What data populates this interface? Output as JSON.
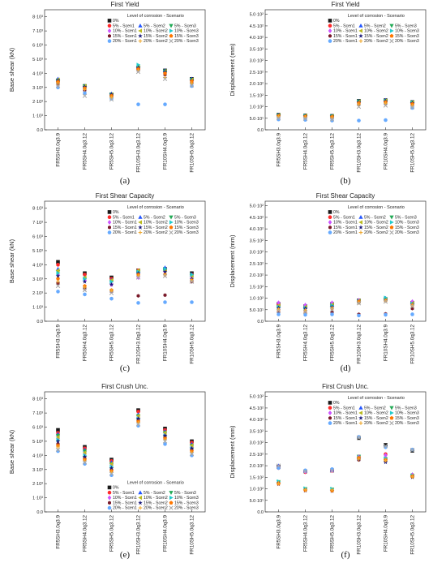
{
  "figure": {
    "legend_title": "Level of corrosion - Scenario",
    "legend_entries": [
      "0%",
      "5% - Scen1",
      "5% - Scen2",
      "5% - Scen3",
      "10% - Scen1",
      "10% - Scen2",
      "10% - Scen3",
      "15% - Scen1",
      "15% - Scen2",
      "15% - Scen3",
      "20% - Scen1",
      "20% - Scen2",
      "20% - Scen3"
    ],
    "series_colors": [
      "#1a1a1a",
      "#ff2a2a",
      "#2255ff",
      "#22aa55",
      "#cc55ff",
      "#bbbb22",
      "#22cccc",
      "#7a1a2a",
      "#1a1a7a",
      "#ff7700",
      "#66aaff",
      "#eeaa33",
      "#aaaaaa"
    ],
    "series_markers": [
      "square",
      "circle",
      "triangle",
      "triangle-down",
      "diamond",
      "triangle-left",
      "triangle-right",
      "hexagon",
      "star",
      "pentagon",
      "circle",
      "plus",
      "x"
    ],
    "categories": [
      "FR5SH3.0q3.9",
      "FR5SH4.0q3.12",
      "FR5SH5.0q3.12",
      "FR10SH3.0q3.12",
      "FR10SH4.0q3.9",
      "FR10SH5.0q3.12"
    ]
  },
  "chart_data": [
    {
      "panel": "(a)",
      "type": "scatter",
      "title": "First Yield",
      "xlabel": "",
      "ylabel": "Base shear (kN)",
      "ylim": [
        0,
        8500
      ],
      "yticks": [
        0,
        1000,
        2000,
        3000,
        4000,
        5000,
        6000,
        7000,
        8000
      ],
      "ytick_labels": [
        "0.0",
        "1·10³",
        "2·10³",
        "3·10³",
        "4·10³",
        "5·10³",
        "6·10³",
        "7·10³",
        "8·10³"
      ],
      "legend_position": "top-right",
      "series": [
        {
          "name": "0%",
          "values": [
            3500,
            3100,
            2500,
            4400,
            4200,
            3600
          ]
        },
        {
          "name": "5% - Scen1",
          "values": [
            3400,
            3000,
            2500,
            4300,
            4100,
            3500
          ]
        },
        {
          "name": "5% - Scen2",
          "values": [
            3600,
            3100,
            2550,
            4500,
            4200,
            3600
          ]
        },
        {
          "name": "5% - Scen3",
          "values": [
            3500,
            3100,
            2500,
            4400,
            4150,
            3550
          ]
        },
        {
          "name": "10% - Scen1",
          "values": [
            3300,
            2900,
            2400,
            4300,
            4000,
            3400
          ]
        },
        {
          "name": "10% - Scen2",
          "values": [
            3550,
            3100,
            2500,
            4450,
            4150,
            3550
          ]
        },
        {
          "name": "10% - Scen3",
          "values": [
            3450,
            3000,
            2450,
            4600,
            4100,
            3500
          ]
        },
        {
          "name": "15% - Scen1",
          "values": [
            3200,
            2800,
            2300,
            4200,
            3900,
            3300
          ]
        },
        {
          "name": "15% - Scen2",
          "values": [
            3500,
            3050,
            2500,
            4400,
            4100,
            3500
          ]
        },
        {
          "name": "15% - Scen3",
          "values": [
            3400,
            2950,
            2400,
            4300,
            4000,
            3450
          ]
        },
        {
          "name": "20% - Scen1",
          "values": [
            3000,
            2600,
            2200,
            1800,
            1800,
            3100
          ]
        },
        {
          "name": "20% - Scen2",
          "values": [
            3300,
            2850,
            2300,
            4200,
            3700,
            3300
          ]
        },
        {
          "name": "20% - Scen3",
          "values": [
            3100,
            2400,
            2150,
            4100,
            3600,
            3150
          ]
        }
      ]
    },
    {
      "panel": "(b)",
      "type": "scatter",
      "title": "First Yield",
      "xlabel": "",
      "ylabel": "Displacement (mm)",
      "ylim": [
        0,
        520
      ],
      "yticks": [
        0,
        50,
        100,
        150,
        200,
        250,
        300,
        350,
        400,
        450,
        500
      ],
      "ytick_labels": [
        "0.0",
        "5.0·10¹",
        "1.0·10²",
        "1.5·10²",
        "2.0·10²",
        "2.5·10²",
        "3.0·10²",
        "3.5·10²",
        "4.0·10²",
        "4.5·10²",
        "5.0·10²"
      ],
      "legend_position": "top-right",
      "series": [
        {
          "name": "0%",
          "values": [
            65,
            62,
            60,
            125,
            128,
            120
          ]
        },
        {
          "name": "5% - Scen1",
          "values": [
            62,
            60,
            58,
            122,
            125,
            118
          ]
        },
        {
          "name": "5% - Scen2",
          "values": [
            64,
            62,
            60,
            124,
            128,
            120
          ]
        },
        {
          "name": "5% - Scen3",
          "values": [
            63,
            61,
            59,
            123,
            126,
            119
          ]
        },
        {
          "name": "10% - Scen1",
          "values": [
            58,
            56,
            54,
            115,
            118,
            110
          ]
        },
        {
          "name": "10% - Scen2",
          "values": [
            63,
            61,
            59,
            122,
            126,
            118
          ]
        },
        {
          "name": "10% - Scen3",
          "values": [
            61,
            60,
            57,
            120,
            124,
            116
          ]
        },
        {
          "name": "15% - Scen1",
          "values": [
            55,
            52,
            50,
            108,
            112,
            104
          ]
        },
        {
          "name": "15% - Scen2",
          "values": [
            62,
            60,
            58,
            120,
            124,
            116
          ]
        },
        {
          "name": "15% - Scen3",
          "values": [
            60,
            58,
            56,
            116,
            120,
            112
          ]
        },
        {
          "name": "20% - Scen1",
          "values": [
            45,
            43,
            40,
            40,
            42,
            95
          ]
        },
        {
          "name": "20% - Scen2",
          "values": [
            58,
            55,
            52,
            110,
            115,
            105
          ]
        },
        {
          "name": "20% - Scen3",
          "values": [
            50,
            48,
            45,
            100,
            105,
            98
          ]
        }
      ]
    },
    {
      "panel": "(c)",
      "type": "scatter",
      "title": "First Shear Capacity",
      "xlabel": "",
      "ylabel": "Base shear (kN)",
      "ylim": [
        0,
        8500
      ],
      "yticks": [
        0,
        1000,
        2000,
        3000,
        4000,
        5000,
        6000,
        7000,
        8000
      ],
      "ytick_labels": [
        "0.0",
        "1·10³",
        "2·10³",
        "3·10³",
        "4·10³",
        "5·10³",
        "6·10³",
        "7·10³",
        "8·10³"
      ],
      "legend_position": "top-right",
      "series": [
        {
          "name": "0%",
          "values": [
            4200,
            3400,
            3100,
            3600,
            3700,
            3400
          ]
        },
        {
          "name": "5% - Scen1",
          "values": [
            4000,
            3300,
            3000,
            3600,
            3600,
            3300
          ]
        },
        {
          "name": "5% - Scen2",
          "values": [
            3700,
            3100,
            2900,
            3500,
            3800,
            3300
          ]
        },
        {
          "name": "5% - Scen3",
          "values": [
            3500,
            3000,
            2800,
            3500,
            3600,
            3200
          ]
        },
        {
          "name": "10% - Scen1",
          "values": [
            3300,
            2900,
            2600,
            3100,
            3500,
            3100
          ]
        },
        {
          "name": "10% - Scen2",
          "values": [
            3600,
            3100,
            2900,
            3600,
            3600,
            3200
          ]
        },
        {
          "name": "10% - Scen3",
          "values": [
            3400,
            3000,
            2800,
            3500,
            3700,
            3300
          ]
        },
        {
          "name": "15% - Scen1",
          "values": [
            2700,
            2300,
            2100,
            1800,
            1850,
            2800
          ]
        },
        {
          "name": "15% - Scen2",
          "values": [
            3200,
            2800,
            2600,
            3400,
            3500,
            3000
          ]
        },
        {
          "name": "15% - Scen3",
          "values": [
            3000,
            2500,
            2200,
            3300,
            3300,
            2900
          ]
        },
        {
          "name": "20% - Scen1",
          "values": [
            2100,
            1900,
            1600,
            1300,
            1350,
            1350
          ]
        },
        {
          "name": "20% - Scen2",
          "values": [
            2800,
            2400,
            2200,
            3200,
            3300,
            2900
          ]
        },
        {
          "name": "20% - Scen3",
          "values": [
            2500,
            2200,
            2000,
            3100,
            3200,
            2800
          ]
        }
      ]
    },
    {
      "panel": "(d)",
      "type": "scatter",
      "title": "First Shear Capacity",
      "xlabel": "",
      "ylabel": "Displacement (mm)",
      "ylim": [
        0,
        520
      ],
      "yticks": [
        0,
        50,
        100,
        150,
        200,
        250,
        300,
        350,
        400,
        450,
        500
      ],
      "ytick_labels": [
        "0.0",
        "5.0·10¹",
        "1.0·10²",
        "1.5·10²",
        "2.0·10²",
        "2.5·10²",
        "3.0·10²",
        "3.5·10²",
        "4.0·10²",
        "4.5·10²",
        "5.0·10²"
      ],
      "legend_position": "top-right",
      "series": [
        {
          "name": "0%",
          "values": [
            75,
            65,
            75,
            90,
            95,
            80
          ]
        },
        {
          "name": "5% - Scen1",
          "values": [
            72,
            63,
            73,
            88,
            98,
            78
          ]
        },
        {
          "name": "5% - Scen2",
          "values": [
            65,
            60,
            70,
            85,
            100,
            80
          ]
        },
        {
          "name": "5% - Scen3",
          "values": [
            60,
            58,
            68,
            85,
            95,
            75
          ]
        },
        {
          "name": "10% - Scen1",
          "values": [
            80,
            70,
            80,
            90,
            95,
            85
          ]
        },
        {
          "name": "10% - Scen2",
          "values": [
            68,
            62,
            72,
            88,
            97,
            78
          ]
        },
        {
          "name": "10% - Scen3",
          "values": [
            62,
            58,
            68,
            86,
            102,
            76
          ]
        },
        {
          "name": "15% - Scen1",
          "values": [
            40,
            35,
            38,
            30,
            32,
            55
          ]
        },
        {
          "name": "15% - Scen2",
          "values": [
            58,
            55,
            62,
            82,
            92,
            72
          ]
        },
        {
          "name": "15% - Scen3",
          "values": [
            50,
            45,
            55,
            85,
            90,
            70
          ]
        },
        {
          "name": "20% - Scen1",
          "values": [
            30,
            28,
            30,
            25,
            28,
            30
          ]
        },
        {
          "name": "20% - Scen2",
          "values": [
            52,
            48,
            58,
            80,
            88,
            68
          ]
        },
        {
          "name": "20% - Scen3",
          "values": [
            45,
            40,
            50,
            78,
            85,
            65
          ]
        }
      ]
    },
    {
      "panel": "(e)",
      "type": "scatter",
      "title": "First Crush Unc.",
      "xlabel": "",
      "ylabel": "Base shear (kN)",
      "ylim": [
        0,
        8500
      ],
      "yticks": [
        0,
        1000,
        2000,
        3000,
        4000,
        5000,
        6000,
        7000,
        8000
      ],
      "ytick_labels": [
        "0.0",
        "1·10³",
        "2·10³",
        "3·10³",
        "4·10³",
        "5·10³",
        "6·10³",
        "7·10³",
        "8·10³"
      ],
      "legend_position": "bottom-right",
      "series": [
        {
          "name": "0%",
          "values": [
            5800,
            4600,
            3700,
            7200,
            5900,
            5000
          ]
        },
        {
          "name": "5% - Scen1",
          "values": [
            5600,
            4500,
            3600,
            7100,
            5800,
            4900
          ]
        },
        {
          "name": "5% - Scen2",
          "values": [
            5500,
            4400,
            3500,
            6900,
            5700,
            4800
          ]
        },
        {
          "name": "5% - Scen3",
          "values": [
            5400,
            4300,
            3400,
            6800,
            5600,
            4700
          ]
        },
        {
          "name": "10% - Scen1",
          "values": [
            5200,
            4100,
            3300,
            6700,
            5500,
            4600
          ]
        },
        {
          "name": "10% - Scen2",
          "values": [
            5300,
            4200,
            3400,
            6800,
            5600,
            4700
          ]
        },
        {
          "name": "10% - Scen3",
          "values": [
            5100,
            4000,
            3200,
            6600,
            5400,
            4500
          ]
        },
        {
          "name": "15% - Scen1",
          "values": [
            4800,
            3800,
            3000,
            6500,
            5300,
            4400
          ]
        },
        {
          "name": "15% - Scen2",
          "values": [
            5000,
            3900,
            3100,
            6600,
            5400,
            4500
          ]
        },
        {
          "name": "15% - Scen3",
          "values": [
            4700,
            3700,
            2900,
            6400,
            5200,
            4300
          ]
        },
        {
          "name": "20% - Scen1",
          "values": [
            4300,
            3400,
            2600,
            6100,
            4800,
            4000
          ]
        },
        {
          "name": "20% - Scen2",
          "values": [
            4600,
            3600,
            2800,
            6300,
            5100,
            4200
          ]
        },
        {
          "name": "20% - Scen3",
          "values": [
            4400,
            3500,
            2700,
            6200,
            5000,
            4100
          ]
        }
      ]
    },
    {
      "panel": "(f)",
      "type": "scatter",
      "title": "First Crush Unc.",
      "xlabel": "",
      "ylabel": "Displacement (mm)",
      "ylim": [
        0,
        520
      ],
      "yticks": [
        0,
        50,
        100,
        150,
        200,
        250,
        300,
        350,
        400,
        450,
        500
      ],
      "ytick_labels": [
        "0.0",
        "5.0·10¹",
        "1.0·10²",
        "1.5·10²",
        "2.0·10²",
        "2.5·10²",
        "3.0·10²",
        "3.5·10²",
        "4.0·10²",
        "4.5·10²",
        "5.0·10²"
      ],
      "legend_position": "top-right",
      "series": [
        {
          "name": "0%",
          "values": [
            195,
            175,
            180,
            320,
            290,
            265
          ]
        },
        {
          "name": "5% - Scen1",
          "values": [
            190,
            172,
            178,
            240,
            250,
            160
          ]
        },
        {
          "name": "5% - Scen2",
          "values": [
            200,
            178,
            182,
            235,
            235,
            162
          ]
        },
        {
          "name": "5% - Scen3",
          "values": [
            130,
            100,
            98,
            240,
            230,
            158
          ]
        },
        {
          "name": "10% - Scen1",
          "values": [
            195,
            175,
            180,
            238,
            245,
            160
          ]
        },
        {
          "name": "10% - Scen2",
          "values": [
            128,
            98,
            96,
            232,
            228,
            155
          ]
        },
        {
          "name": "10% - Scen3",
          "values": [
            132,
            102,
            100,
            236,
            232,
            158
          ]
        },
        {
          "name": "15% - Scen1",
          "values": [
            125,
            95,
            92,
            225,
            220,
            152
          ]
        },
        {
          "name": "15% - Scen2",
          "values": [
            120,
            92,
            90,
            230,
            215,
            150
          ]
        },
        {
          "name": "15% - Scen3",
          "values": [
            122,
            94,
            92,
            234,
            225,
            154
          ]
        },
        {
          "name": "20% - Scen1",
          "values": [
            190,
            180,
            185,
            325,
            280,
            270
          ]
        },
        {
          "name": "20% - Scen2",
          "values": [
            125,
            96,
            95,
            228,
            222,
            152
          ]
        },
        {
          "name": "20% - Scen3",
          "values": [
            200,
            175,
            178,
            322,
            285,
            268
          ]
        }
      ]
    }
  ]
}
